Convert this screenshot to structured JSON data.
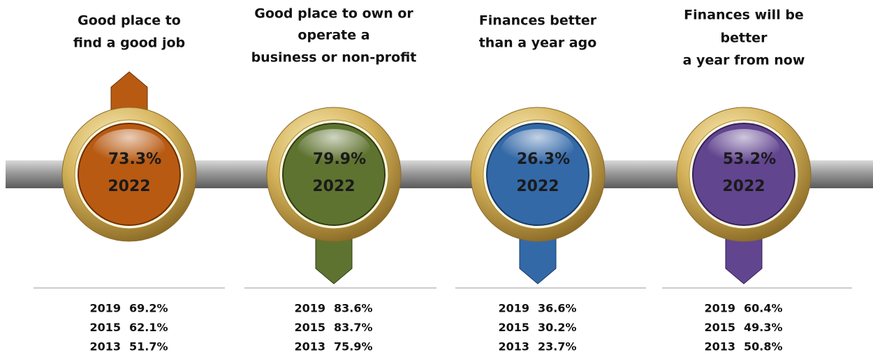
{
  "items": [
    {
      "title_lines": [
        "Good place to",
        "find a good job"
      ],
      "value": "73.3%",
      "year": "2022",
      "history": [
        {
          "year": "2019",
          "value": "69.2%"
        },
        {
          "year": "2015",
          "value": "62.1%"
        },
        {
          "year": "2013",
          "value": "51.7%"
        }
      ]
    },
    {
      "title_lines": [
        "Good place to own or",
        "operate a",
        "business or non-profit"
      ],
      "value": "79.9%",
      "year": "2022",
      "history": [
        {
          "year": "2019",
          "value": "83.6%"
        },
        {
          "year": "2015",
          "value": "83.7%"
        },
        {
          "year": "2013",
          "value": "75.9%"
        }
      ]
    },
    {
      "title_lines": [
        "Finances better",
        "than a year ago"
      ],
      "value": "26.3%",
      "year": "2022",
      "history": [
        {
          "year": "2019",
          "value": "36.6%"
        },
        {
          "year": "2015",
          "value": "30.2%"
        },
        {
          "year": "2013",
          "value": "23.7%"
        }
      ]
    },
    {
      "title_lines": [
        "Finances will be",
        "better",
        "a year from now"
      ],
      "value": "53.2%",
      "year": "2022",
      "history": [
        {
          "year": "2019",
          "value": "60.4%"
        },
        {
          "year": "2015",
          "value": "49.3%"
        },
        {
          "year": "2013",
          "value": "50.8%"
        }
      ]
    }
  ]
}
